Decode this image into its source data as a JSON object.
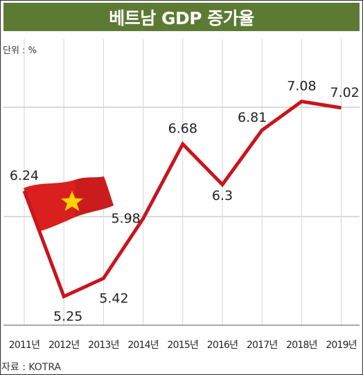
{
  "title": "베트남 GDP 증가율",
  "unit_label": "단위 : %",
  "source": "자료 : KOTRA",
  "colors": {
    "title_bg": "#5c7a34",
    "line": "#c8151d",
    "grid": "#b5b5b5",
    "flag_red": "#d9201f",
    "flag_star": "#ffd200"
  },
  "chart_data": {
    "type": "line",
    "title": "베트남 GDP 증가율",
    "ylabel": "단위 : %",
    "categories": [
      "2011년",
      "2012년",
      "2013년",
      "2014년",
      "2015년",
      "2016년",
      "2017년",
      "2018년",
      "2019년"
    ],
    "series": [
      {
        "values": [
          6.24,
          5.25,
          5.42,
          5.98,
          6.68,
          6.3,
          6.81,
          7.08,
          7.02
        ]
      }
    ],
    "data_labels": [
      "6.24",
      "5.25",
      "5.42",
      "5.98",
      "6.68",
      "6.3",
      "6.81",
      "7.08",
      "7.02"
    ],
    "grid": true,
    "legend": "none",
    "decoration": "vietnam-flag"
  }
}
